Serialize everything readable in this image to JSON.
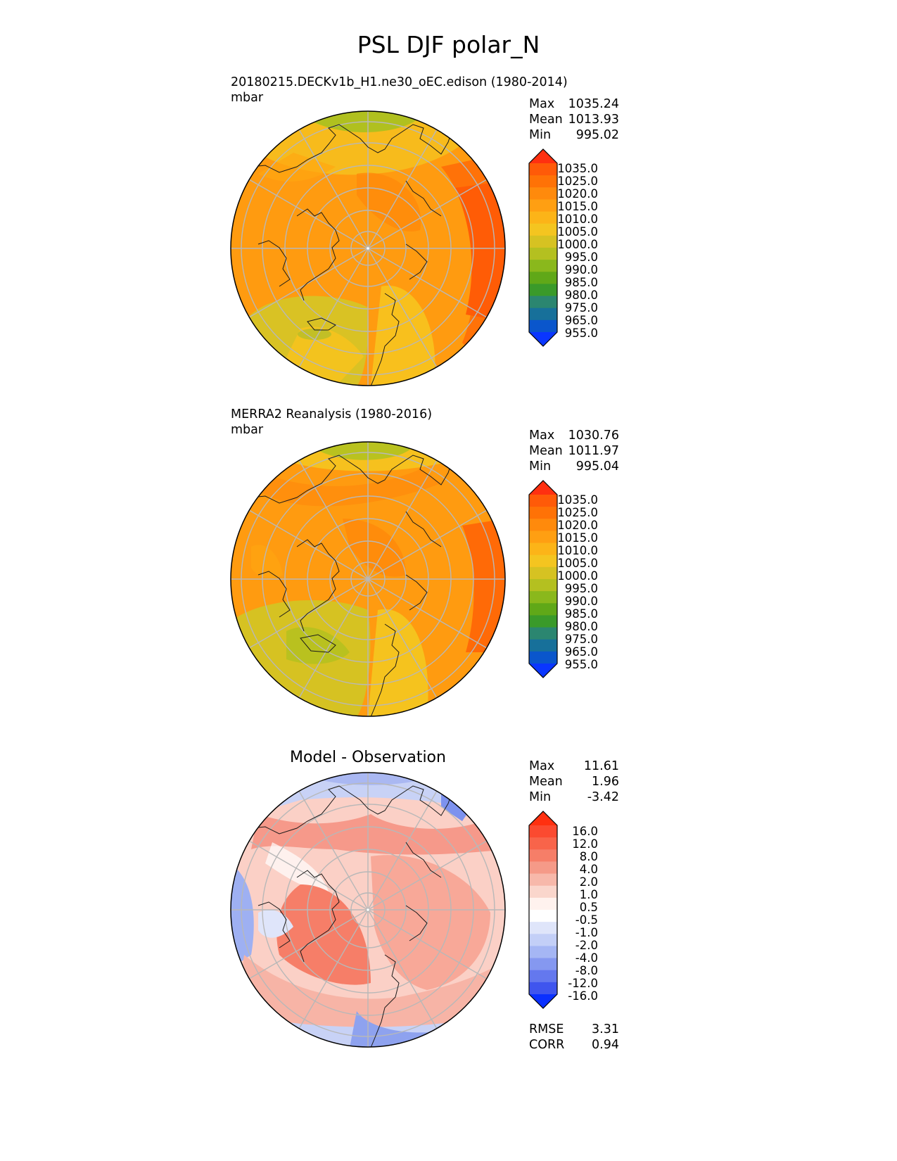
{
  "figure": {
    "title": "PSL DJF polar_N"
  },
  "panels": [
    {
      "id": "model",
      "title_line1": "20180215.DECKv1b_H1.ne30_oEC.edison (1980-2014)",
      "title_line2": "mbar",
      "stats": [
        {
          "label": "Max",
          "value": "1035.24"
        },
        {
          "label": "Mean",
          "value": "1013.93"
        },
        {
          "label": "Min",
          "value": "995.02"
        }
      ]
    },
    {
      "id": "obs",
      "title_line1": "MERRA2 Reanalysis (1980-2016)",
      "title_line2": "mbar",
      "stats": [
        {
          "label": "Max",
          "value": "1030.76"
        },
        {
          "label": "Mean",
          "value": "1011.97"
        },
        {
          "label": "Min",
          "value": "995.04"
        }
      ]
    },
    {
      "id": "diff",
      "title": "Model - Observation",
      "stats": [
        {
          "label": "Max",
          "value": "11.61"
        },
        {
          "label": "Mean",
          "value": "1.96"
        },
        {
          "label": "Min",
          "value": "-3.42"
        }
      ],
      "metrics": [
        {
          "label": "RMSE",
          "value": "3.31"
        },
        {
          "label": "CORR",
          "value": "0.94"
        }
      ]
    }
  ],
  "colorbars": {
    "field": {
      "labels": [
        "1035.0",
        "1025.0",
        "1020.0",
        "1015.0",
        "1010.0",
        "1005.0",
        "1000.0",
        "995.0",
        "990.0",
        "985.0",
        "980.0",
        "975.0",
        "965.0",
        "955.0"
      ],
      "colors": [
        "#ff3010",
        "#ff5a08",
        "#ff7206",
        "#ff8a0c",
        "#ff9f12",
        "#fcb418",
        "#f4c520",
        "#d6c222",
        "#b4c020",
        "#8ab81c",
        "#60a818",
        "#3a9a2a",
        "#2b8670",
        "#17709a",
        "#0a56cc",
        "#0a36ff"
      ]
    },
    "diff": {
      "labels": [
        "16.0",
        "12.0",
        "8.0",
        "4.0",
        "2.0",
        "1.0",
        "0.5",
        "-0.5",
        "-1.0",
        "-2.0",
        "-4.0",
        "-8.0",
        "-12.0",
        "-16.0"
      ],
      "colors": [
        "#ff3010",
        "#fb4a30",
        "#f8644a",
        "#f67e68",
        "#f59a88",
        "#f7b8aa",
        "#fad6cc",
        "#fff2ee",
        "#ffffff",
        "#dfe5fa",
        "#c3cff7",
        "#a5b6f4",
        "#8598f0",
        "#6478ee",
        "#3f55ee",
        "#0a30ff"
      ]
    }
  }
}
